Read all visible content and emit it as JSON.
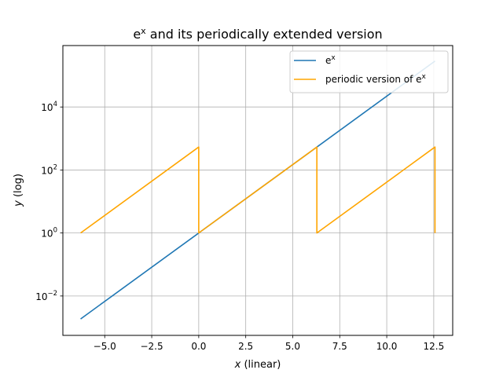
{
  "chart_data": {
    "type": "line",
    "title": {
      "base": "e",
      "sup": "x",
      "rest": " and its periodically extended version"
    },
    "xlabel": {
      "var": "x",
      "rest": " (linear)"
    },
    "ylabel": {
      "var": "y",
      "rest": " (log)"
    },
    "xlim": [
      -7.226,
      13.508
    ],
    "ylim_log10": [
      -3.25,
      5.95
    ],
    "yscale": "log",
    "grid": true,
    "legend_position": "upper right",
    "x_ticks": [
      -5.0,
      -2.5,
      0.0,
      2.5,
      5.0,
      7.5,
      10.0,
      12.5
    ],
    "x_tick_labels": [
      "−5.0",
      "−2.5",
      "0.0",
      "2.5",
      "5.0",
      "7.5",
      "10.0",
      "12.5"
    ],
    "y_ticks_log10": [
      -2,
      0,
      2,
      4
    ],
    "y_tick_labels": [
      {
        "base": "10",
        "exp": "−2"
      },
      {
        "base": "10",
        "exp": "0"
      },
      {
        "base": "10",
        "exp": "2"
      },
      {
        "base": "10",
        "exp": "4"
      }
    ],
    "series": [
      {
        "legend": {
          "base": "e",
          "sup": "x",
          "rest": ""
        },
        "color": "#1f77b4",
        "x": [
          -6.2832,
          12.5664
        ],
        "y": [
          0.001867,
          286751.3
        ]
      },
      {
        "legend": {
          "base": "periodic version of e",
          "sup": "x",
          "rest": ""
        },
        "color": "#ffa500",
        "x": [
          -6.2832,
          0.0,
          0.0,
          6.2832,
          6.2832,
          12.5664,
          12.5664
        ],
        "y": [
          1.0,
          535.49,
          1.0,
          535.49,
          1.0,
          535.49,
          1.0
        ]
      }
    ]
  }
}
